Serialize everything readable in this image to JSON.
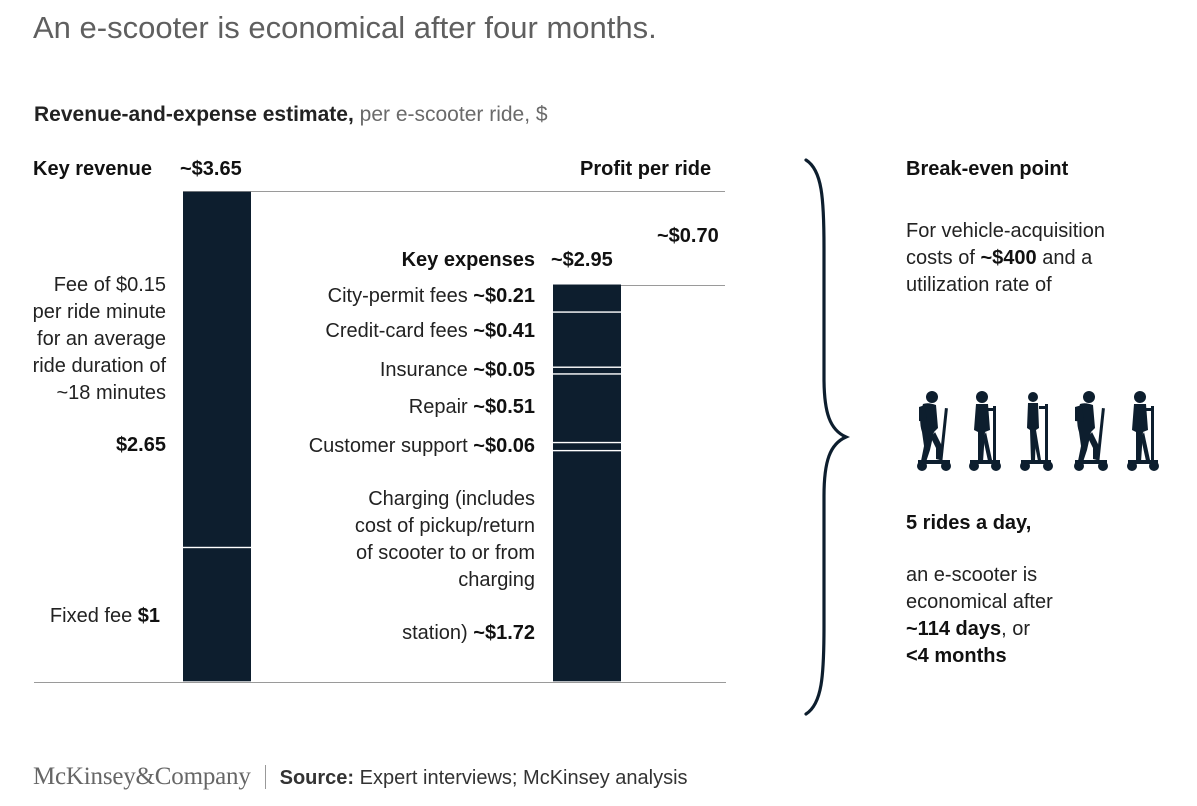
{
  "headline": "An e-scooter is economical after four months.",
  "subtitle": {
    "bold": "Revenue-and-expense estimate,",
    "light": "per e-scooter ride, $"
  },
  "revenue": {
    "header_label": "Key revenue",
    "header_value": "~$3.65",
    "ride_fee_text": "Fee of $0.15 per ride minute for an average ride duration of ~18 minutes",
    "ride_fee_value": "$2.65",
    "fixed_fee_label": "Fixed fee",
    "fixed_fee_value": "$1"
  },
  "expenses": {
    "header_label": "Key expenses",
    "header_value": "~$2.95",
    "items": [
      {
        "label": "City-permit fees",
        "value": "~$0.21"
      },
      {
        "label": "Credit-card fees",
        "value": "~$0.41"
      },
      {
        "label": "Insurance",
        "value": "~$0.05"
      },
      {
        "label": "Repair",
        "value": "~$0.51"
      },
      {
        "label": "Customer support",
        "value": "~$0.06"
      }
    ],
    "charging_text": "Charging (includes cost of pickup/return of scooter to or from charging",
    "charging_last": "station)",
    "charging_value": "~$1.72"
  },
  "profit": {
    "header_label": "Profit per ride",
    "value": "~$0.70"
  },
  "break_even": {
    "title": "Break-even point",
    "intro_a": "For vehicle-acquisition costs of",
    "intro_bold": "~$400",
    "intro_b": "and a utilization rate of",
    "rides": "5 rides a day,",
    "outcome_a": "an e-scooter is economical after",
    "days": "~114 days",
    "or": ", or",
    "months": "<4 months"
  },
  "footer": {
    "logo": "McKinsey&Company",
    "source_label": "Source:",
    "source_text": "Expert interviews; McKinsey analysis"
  },
  "colors": {
    "bar": "#0d1e2e",
    "text": "#111111",
    "muted": "#5f5f5f",
    "rule": "#9a9a9a"
  },
  "icons": [
    "scooter-rider-icon",
    "scooter-rider-icon",
    "scooter-rider-icon",
    "scooter-rider-icon",
    "scooter-rider-icon"
  ],
  "chart_data": {
    "type": "bar",
    "categories": [
      "Key revenue",
      "Key expenses",
      "Profit per ride"
    ],
    "series": [
      {
        "name": "Fixed fee",
        "values": [
          1.0,
          0,
          0
        ]
      },
      {
        "name": "Fee of $0.15 per ride minute",
        "values": [
          2.65,
          0,
          0
        ]
      },
      {
        "name": "Charging",
        "values": [
          0,
          1.72,
          0
        ]
      },
      {
        "name": "Customer support",
        "values": [
          0,
          0.06,
          0
        ]
      },
      {
        "name": "Repair",
        "values": [
          0,
          0.51,
          0
        ]
      },
      {
        "name": "Insurance",
        "values": [
          0,
          0.05,
          0
        ]
      },
      {
        "name": "Credit-card fees",
        "values": [
          0,
          0.41,
          0
        ]
      },
      {
        "name": "City-permit fees",
        "values": [
          0,
          0.21,
          0
        ]
      }
    ],
    "totals": [
      3.65,
      2.95,
      0.7
    ],
    "ylim": [
      0,
      3.65
    ],
    "grid": false
  }
}
